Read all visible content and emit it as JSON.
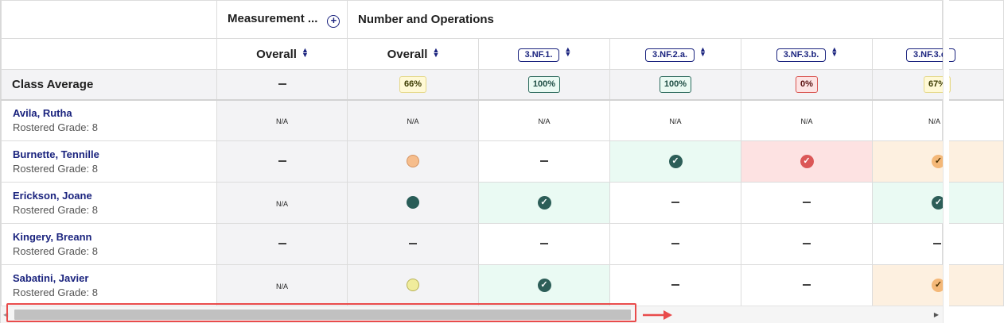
{
  "headers": {
    "group_measurement": "Measurement ...",
    "group_number_ops": "Number and Operations",
    "overall_measurement": "Overall",
    "overall_number_ops": "Overall",
    "standards": [
      "3.NF.1.",
      "3.NF.2.a.",
      "3.NF.3.b.",
      "3.NF.3.c."
    ]
  },
  "class_average": {
    "label": "Class Average",
    "measurement_overall": "—",
    "number_ops_overall": "66%",
    "standards": [
      "100%",
      "100%",
      "0%",
      "67%"
    ]
  },
  "students": [
    {
      "name": "Avila, Rutha",
      "grade": "Rostered Grade: 8",
      "meas": "N/A",
      "num": "N/A",
      "s1": "N/A",
      "s2": "N/A",
      "s3": "N/A",
      "s4": "N/A"
    },
    {
      "name": "Burnette, Tennille",
      "grade": "Rostered Grade: 8"
    },
    {
      "name": "Erickson, Joane",
      "grade": "Rostered Grade: 8",
      "meas": "N/A"
    },
    {
      "name": "Kingery, Breann",
      "grade": "Rostered Grade: 8"
    },
    {
      "name": "Sabatini, Javier",
      "grade": "Rostered Grade: 8",
      "meas": "N/A"
    }
  ],
  "colors": {
    "mastered": "#2d5e58",
    "not_mastered": "#db5757",
    "partial": "#f4b878",
    "accent": "#1a237e",
    "highlight": "#e94b4b"
  },
  "icons": {
    "add_column": "plus-circle-icon",
    "sort": "sort-icon",
    "check": "check-circle-icon"
  }
}
